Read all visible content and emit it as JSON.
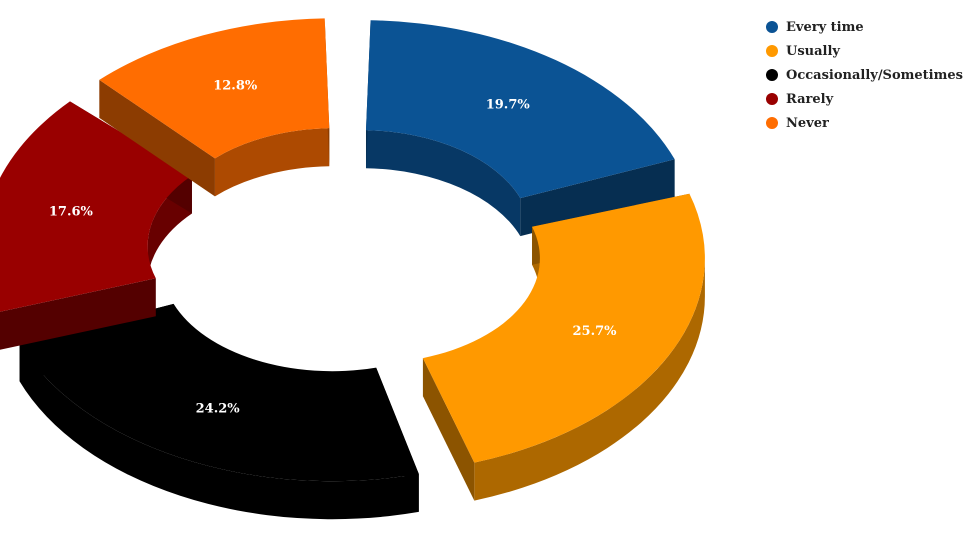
{
  "chart_data": {
    "type": "pie",
    "title": "",
    "categories": [
      "Every time",
      "Usually",
      "Occasionally/Sometimes",
      "Rarely",
      "Never"
    ],
    "values": [
      19.7,
      25.7,
      24.2,
      17.6,
      12.8
    ],
    "value_labels": [
      "19.7%",
      "25.7%",
      "24.2%",
      "17.6%",
      "12.8%"
    ],
    "colors": [
      "#0b5394",
      "#ff9900",
      "#000000",
      "#990000",
      "#ff6d01"
    ],
    "legend_position": "top-right",
    "style": "3d-exploded-donut"
  }
}
